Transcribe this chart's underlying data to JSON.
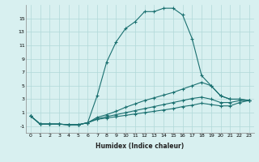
{
  "xlabel": "Humidex (Indice chaleur)",
  "bg_color": "#d8f0f0",
  "grid_color": "#b0d8d8",
  "line_color": "#1a7070",
  "xlim": [
    -0.5,
    23.5
  ],
  "ylim": [
    -2,
    17
  ],
  "xticks": [
    0,
    1,
    2,
    3,
    4,
    5,
    6,
    7,
    8,
    9,
    10,
    11,
    12,
    13,
    14,
    15,
    16,
    17,
    18,
    19,
    20,
    21,
    22,
    23
  ],
  "yticks": [
    -1,
    1,
    3,
    5,
    7,
    9,
    11,
    13,
    15
  ],
  "main_line": {
    "x": [
      0,
      1,
      2,
      3,
      4,
      5,
      6,
      7,
      8,
      9,
      10,
      11,
      12,
      13,
      14,
      15,
      16,
      17,
      18,
      19,
      20,
      21,
      22,
      23
    ],
    "y": [
      0.5,
      -0.7,
      -0.7,
      -0.7,
      -0.8,
      -0.8,
      -0.5,
      3.5,
      8.5,
      11.5,
      13.5,
      14.5,
      16.0,
      16.0,
      16.5,
      16.5,
      15.5,
      12.0,
      6.5,
      5.0,
      3.5,
      3.0,
      3.0,
      2.8
    ]
  },
  "line2": {
    "x": [
      0,
      1,
      2,
      3,
      4,
      5,
      6,
      7,
      8,
      9,
      10,
      11,
      12,
      13,
      14,
      15,
      16,
      17,
      18,
      19,
      20,
      21,
      22,
      23
    ],
    "y": [
      0.5,
      -0.7,
      -0.7,
      -0.7,
      -0.8,
      -0.8,
      -0.5,
      0.3,
      0.7,
      1.2,
      1.8,
      2.3,
      2.8,
      3.2,
      3.6,
      4.0,
      4.5,
      5.0,
      5.5,
      5.0,
      3.5,
      3.0,
      3.0,
      2.8
    ]
  },
  "line3": {
    "x": [
      0,
      1,
      2,
      3,
      4,
      5,
      6,
      7,
      8,
      9,
      10,
      11,
      12,
      13,
      14,
      15,
      16,
      17,
      18,
      19,
      20,
      21,
      22,
      23
    ],
    "y": [
      0.5,
      -0.7,
      -0.7,
      -0.7,
      -0.8,
      -0.8,
      -0.5,
      0.1,
      0.4,
      0.7,
      1.0,
      1.3,
      1.6,
      1.9,
      2.2,
      2.5,
      2.8,
      3.1,
      3.3,
      3.0,
      2.5,
      2.5,
      2.8,
      2.8
    ]
  },
  "line4": {
    "x": [
      0,
      1,
      2,
      3,
      4,
      5,
      6,
      7,
      8,
      9,
      10,
      11,
      12,
      13,
      14,
      15,
      16,
      17,
      18,
      19,
      20,
      21,
      22,
      23
    ],
    "y": [
      0.5,
      -0.7,
      -0.7,
      -0.7,
      -0.8,
      -0.8,
      -0.5,
      0.0,
      0.2,
      0.4,
      0.6,
      0.8,
      1.0,
      1.2,
      1.4,
      1.6,
      1.9,
      2.1,
      2.4,
      2.2,
      2.0,
      2.0,
      2.5,
      2.8
    ]
  }
}
